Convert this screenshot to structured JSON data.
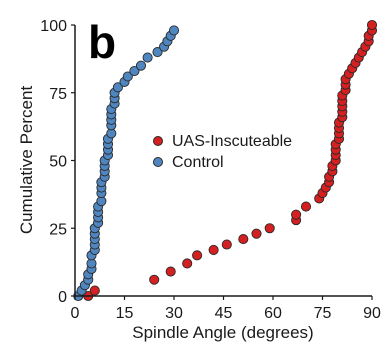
{
  "chart_data": {
    "type": "scatter",
    "panel_label": "b",
    "title": "",
    "xlabel": "Spindle Angle (degrees)",
    "ylabel": "Cumulative Percent",
    "xlim": [
      0,
      90
    ],
    "ylim": [
      0,
      100
    ],
    "xticks": [
      "0",
      "15",
      "30",
      "45",
      "60",
      "75",
      "90"
    ],
    "yticks": [
      "0",
      "25",
      "50",
      "75",
      "100"
    ],
    "grid": false,
    "legend_position": "center",
    "series": [
      {
        "name": "UAS-Inscuteable",
        "color": "#d42020",
        "x": [
          4,
          6,
          24,
          29,
          34,
          37,
          42,
          46,
          51,
          55,
          59,
          67,
          67,
          70,
          74,
          75,
          76,
          77,
          77,
          78,
          78,
          79,
          79,
          79,
          79,
          80,
          80,
          80,
          80,
          81,
          81,
          81,
          81,
          81,
          82,
          82,
          82,
          83,
          84,
          85,
          86,
          87,
          88,
          89,
          89,
          90,
          90
        ],
        "y": [
          0,
          2,
          6,
          9,
          12,
          15,
          17,
          19,
          21,
          23,
          25,
          28,
          30,
          33,
          36,
          38,
          40,
          42,
          44,
          46,
          48,
          50,
          52,
          54,
          56,
          58,
          60,
          62,
          64,
          66,
          68,
          70,
          72,
          74,
          76,
          78,
          80,
          82,
          84,
          86,
          88,
          90,
          92,
          94,
          96,
          98,
          100
        ]
      },
      {
        "name": "Control",
        "color": "#4f86c0",
        "x": [
          1,
          2,
          3,
          4,
          4,
          5,
          5,
          5,
          6,
          6,
          6,
          6,
          6,
          7,
          7,
          7,
          7,
          8,
          8,
          8,
          8,
          9,
          9,
          9,
          9,
          10,
          10,
          10,
          10,
          11,
          11,
          11,
          11,
          11,
          12,
          12,
          12,
          13,
          15,
          16,
          18,
          20,
          22,
          25,
          27,
          28,
          29,
          30
        ],
        "y": [
          0,
          2,
          4,
          6,
          8,
          10,
          12,
          15,
          17,
          19,
          21,
          23,
          25,
          27,
          29,
          31,
          33,
          35,
          38,
          40,
          42,
          44,
          46,
          48,
          50,
          52,
          54,
          56,
          58,
          60,
          63,
          65,
          67,
          69,
          71,
          73,
          75,
          77,
          79,
          81,
          83,
          85,
          88,
          90,
          92,
          94,
          96,
          98
        ]
      }
    ]
  }
}
